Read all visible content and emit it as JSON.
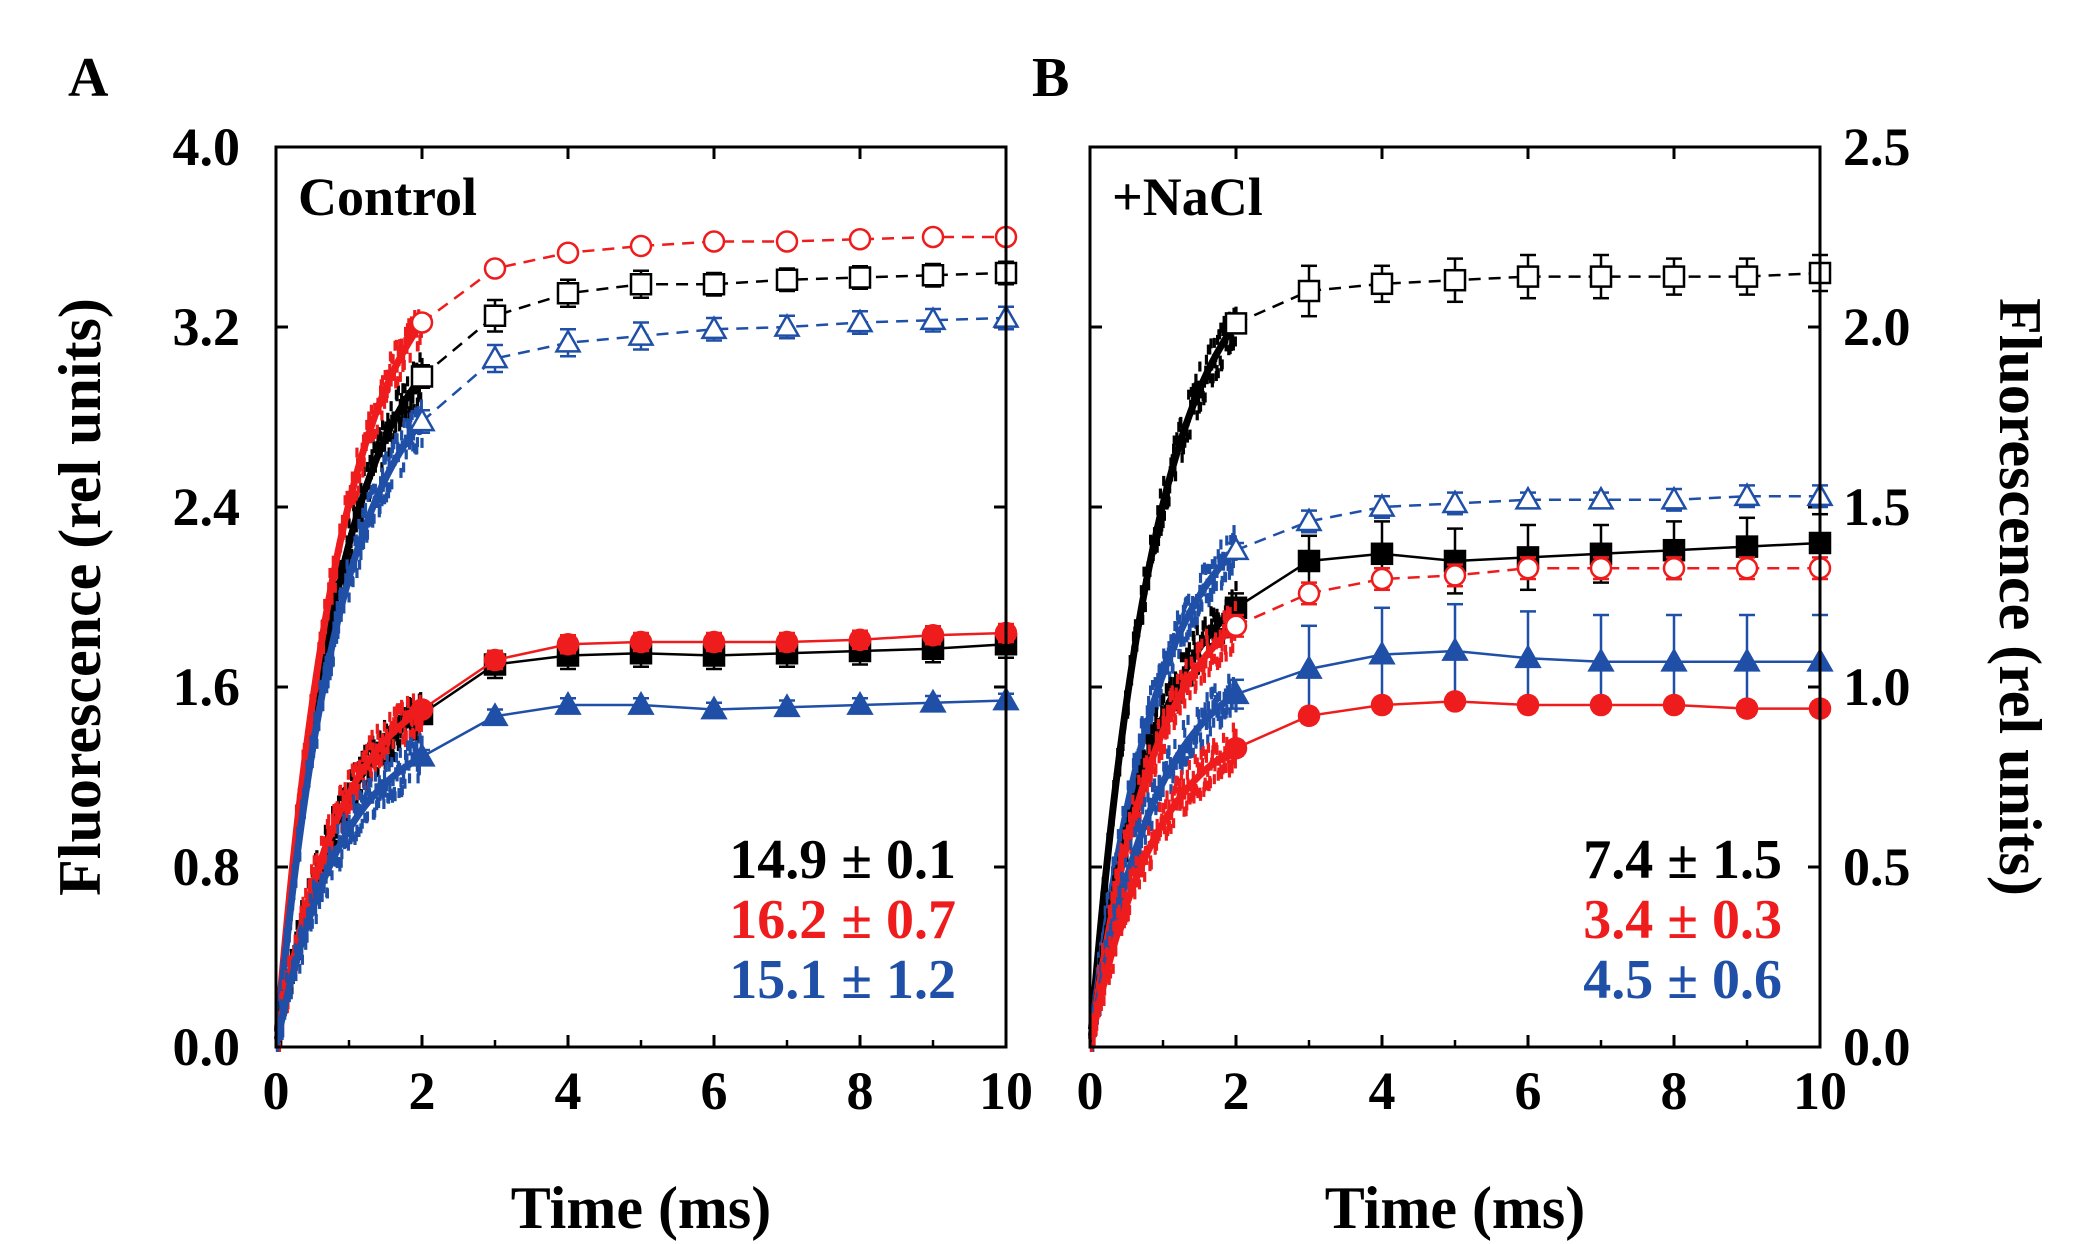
{
  "colors": {
    "black": "#000000",
    "red": "#ee1c1c",
    "blue": "#1f4fa6"
  },
  "panels": [
    {
      "letter": "A",
      "title": "Control",
      "xlabel": "Time (ms)",
      "ylabel": "Fluorescence (rel units)",
      "y_axis_side": "left",
      "rates": [
        {
          "text": "14.9 ± 0.1",
          "color": "black"
        },
        {
          "text": "16.2 ± 0.7",
          "color": "red"
        },
        {
          "text": "15.1 ± 1.2",
          "color": "blue"
        }
      ]
    },
    {
      "letter": "B",
      "title": "+NaCl",
      "xlabel": "Time (ms)",
      "ylabel": "Fluorescence (rel units)",
      "y_axis_side": "right",
      "rates": [
        {
          "text": "7.4 ± 1.5",
          "color": "black"
        },
        {
          "text": "3.4 ± 0.3",
          "color": "red"
        },
        {
          "text": "4.5 ± 0.6",
          "color": "blue"
        }
      ]
    }
  ],
  "chart_data": [
    {
      "type": "line",
      "panel": "A",
      "title": "Control",
      "xlabel": "Time (ms)",
      "ylabel": "Fluorescence (rel units)",
      "xlim": [
        0,
        10
      ],
      "ylim": [
        0,
        4
      ],
      "xticks": [
        "0",
        "2",
        "4",
        "6",
        "8",
        "10"
      ],
      "yticks": [
        "0.0",
        "0.8",
        "1.6",
        "2.4",
        "3.2",
        "4.0"
      ],
      "series": [
        {
          "color": "black",
          "marker": "square",
          "filled": false,
          "x": [
            2,
            3,
            4,
            5,
            6,
            7,
            8,
            9,
            10
          ],
          "y": [
            2.98,
            3.25,
            3.35,
            3.39,
            3.39,
            3.41,
            3.42,
            3.43,
            3.44
          ],
          "err": [
            0.05,
            0.07,
            0.06,
            0.06,
            0.05,
            0.05,
            0.05,
            0.05,
            0.05
          ],
          "fast_end": 2.98
        },
        {
          "color": "red",
          "marker": "circle",
          "filled": false,
          "x": [
            2,
            3,
            4,
            5,
            6,
            7,
            8,
            9,
            10
          ],
          "y": [
            3.22,
            3.46,
            3.53,
            3.56,
            3.58,
            3.58,
            3.59,
            3.6,
            3.6
          ],
          "err": [
            0.02,
            0.02,
            0.02,
            0.02,
            0.02,
            0.02,
            0.02,
            0.02,
            0.02
          ],
          "fast_end": 3.22
        },
        {
          "color": "blue",
          "marker": "triangle",
          "filled": false,
          "x": [
            2,
            3,
            4,
            5,
            6,
            7,
            8,
            9,
            10
          ],
          "y": [
            2.78,
            3.06,
            3.13,
            3.16,
            3.19,
            3.2,
            3.22,
            3.23,
            3.24
          ],
          "err": [
            0.05,
            0.06,
            0.06,
            0.06,
            0.05,
            0.05,
            0.05,
            0.05,
            0.05
          ],
          "fast_end": 2.78
        },
        {
          "color": "black",
          "marker": "square",
          "filled": true,
          "x": [
            2,
            3,
            4,
            5,
            6,
            7,
            8,
            9,
            10
          ],
          "y": [
            1.48,
            1.7,
            1.74,
            1.75,
            1.74,
            1.75,
            1.76,
            1.77,
            1.79
          ],
          "err": [
            0.04,
            0.06,
            0.06,
            0.06,
            0.06,
            0.06,
            0.06,
            0.06,
            0.06
          ],
          "fast_end": 1.48
        },
        {
          "color": "red",
          "marker": "circle",
          "filled": true,
          "x": [
            2,
            3,
            4,
            5,
            6,
            7,
            8,
            9,
            10
          ],
          "y": [
            1.5,
            1.72,
            1.79,
            1.8,
            1.8,
            1.8,
            1.81,
            1.83,
            1.84
          ],
          "err": [
            0.03,
            0.04,
            0.04,
            0.04,
            0.04,
            0.04,
            0.04,
            0.04,
            0.04
          ],
          "fast_end": 1.5
        },
        {
          "color": "blue",
          "marker": "triangle",
          "filled": true,
          "x": [
            2,
            3,
            4,
            5,
            6,
            7,
            8,
            9,
            10
          ],
          "y": [
            1.29,
            1.47,
            1.52,
            1.52,
            1.5,
            1.51,
            1.52,
            1.53,
            1.54
          ],
          "err": [
            0.03,
            0.03,
            0.03,
            0.03,
            0.03,
            0.03,
            0.03,
            0.03,
            0.03
          ],
          "fast_end": 1.29
        }
      ]
    },
    {
      "type": "line",
      "panel": "B",
      "title": "+NaCl",
      "xlabel": "Time (ms)",
      "ylabel": "Fluorescence (rel units)",
      "xlim": [
        0,
        10
      ],
      "ylim": [
        0,
        2.5
      ],
      "xticks": [
        "0",
        "2",
        "4",
        "6",
        "8",
        "10"
      ],
      "yticks": [
        "0.0",
        "0.5",
        "1.0",
        "1.5",
        "2.0",
        "2.5"
      ],
      "series": [
        {
          "color": "black",
          "marker": "square",
          "filled": false,
          "x": [
            2,
            3,
            4,
            5,
            6,
            7,
            8,
            9,
            10
          ],
          "y": [
            2.01,
            2.1,
            2.12,
            2.13,
            2.14,
            2.14,
            2.14,
            2.14,
            2.15
          ],
          "err": [
            0.02,
            0.07,
            0.05,
            0.06,
            0.06,
            0.06,
            0.05,
            0.05,
            0.05
          ],
          "fast_end": 2.01
        },
        {
          "color": "blue",
          "marker": "triangle",
          "filled": false,
          "x": [
            2,
            3,
            4,
            5,
            6,
            7,
            8,
            9,
            10
          ],
          "y": [
            1.38,
            1.46,
            1.5,
            1.51,
            1.52,
            1.52,
            1.52,
            1.53,
            1.53
          ],
          "err": [
            0.02,
            0.03,
            0.03,
            0.03,
            0.02,
            0.02,
            0.03,
            0.03,
            0.03
          ],
          "fast_end": 1.38
        },
        {
          "color": "black",
          "marker": "square",
          "filled": true,
          "x": [
            2,
            3,
            4,
            5,
            6,
            7,
            8,
            9,
            10
          ],
          "y": [
            1.22,
            1.35,
            1.37,
            1.35,
            1.36,
            1.37,
            1.38,
            1.39,
            1.4
          ],
          "err": [
            0.04,
            0.07,
            0.09,
            0.09,
            0.09,
            0.08,
            0.08,
            0.08,
            0.08
          ],
          "fast_end": 1.22
        },
        {
          "color": "red",
          "marker": "circle",
          "filled": false,
          "x": [
            2,
            3,
            4,
            5,
            6,
            7,
            8,
            9,
            10
          ],
          "y": [
            1.17,
            1.26,
            1.3,
            1.31,
            1.33,
            1.33,
            1.33,
            1.33,
            1.33
          ],
          "err": [
            0.03,
            0.03,
            0.03,
            0.03,
            0.03,
            0.03,
            0.03,
            0.03,
            0.03
          ],
          "fast_end": 1.17
        },
        {
          "color": "blue",
          "marker": "triangle",
          "filled": true,
          "x": [
            2,
            3,
            4,
            5,
            6,
            7,
            8,
            9,
            10
          ],
          "y": [
            0.98,
            1.05,
            1.09,
            1.1,
            1.08,
            1.07,
            1.07,
            1.07,
            1.07
          ],
          "err": [
            0.04,
            0.12,
            0.13,
            0.13,
            0.13,
            0.13,
            0.13,
            0.13,
            0.13
          ],
          "fast_end": 0.98
        },
        {
          "color": "red",
          "marker": "circle",
          "filled": true,
          "x": [
            2,
            3,
            4,
            5,
            6,
            7,
            8,
            9,
            10
          ],
          "y": [
            0.83,
            0.92,
            0.95,
            0.96,
            0.95,
            0.95,
            0.95,
            0.94,
            0.94
          ],
          "err": [
            0.02,
            0.02,
            0.02,
            0.02,
            0.02,
            0.02,
            0.02,
            0.02,
            0.02
          ],
          "fast_end": 0.83
        }
      ]
    }
  ]
}
